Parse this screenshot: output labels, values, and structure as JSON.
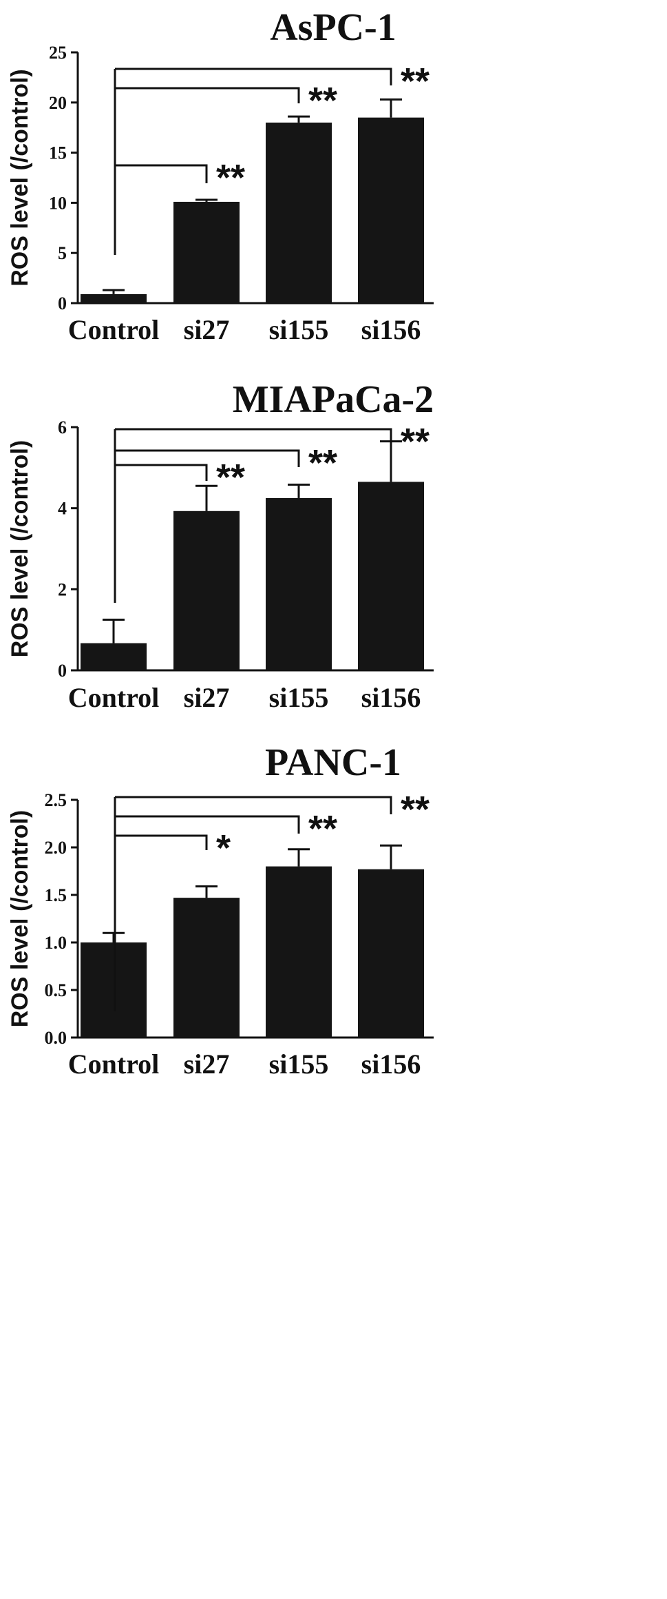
{
  "chart_data": [
    {
      "type": "bar",
      "title": "AsPC-1",
      "xlabel": "",
      "ylabel": "ROS level (/control)",
      "categories": [
        "Control",
        "si27",
        "si155",
        "si156"
      ],
      "values": [
        0.9,
        10.1,
        18.0,
        18.5
      ],
      "errors": [
        0.4,
        0.2,
        0.6,
        1.8
      ],
      "ylim": [
        0,
        25
      ],
      "yticks": [
        "0",
        "5",
        "10",
        "15",
        "20",
        "25"
      ],
      "yticks_values": [
        0,
        5,
        10,
        15,
        20,
        25
      ],
      "bar_color": "#151515",
      "comparisons": [
        {
          "from": "Control",
          "to": "si27",
          "label": "**"
        },
        {
          "from": "Control",
          "to": "si155",
          "label": "**"
        },
        {
          "from": "Control",
          "to": "si156",
          "label": "**"
        }
      ]
    },
    {
      "type": "bar",
      "title": "MIAPaCa-2",
      "xlabel": "",
      "ylabel": "ROS level (/control)",
      "categories": [
        "Control",
        "si27",
        "si155",
        "si156"
      ],
      "values": [
        0.67,
        3.93,
        4.25,
        4.65
      ],
      "errors": [
        0.58,
        0.62,
        0.33,
        1.0
      ],
      "ylim": [
        0,
        6
      ],
      "yticks": [
        "0",
        "2",
        "4",
        "6"
      ],
      "yticks_values": [
        0,
        2,
        4,
        6
      ],
      "bar_color": "#151515",
      "comparisons": [
        {
          "from": "Control",
          "to": "si27",
          "label": "**"
        },
        {
          "from": "Control",
          "to": "si155",
          "label": "**"
        },
        {
          "from": "Control",
          "to": "si156",
          "label": "**"
        }
      ]
    },
    {
      "type": "bar",
      "title": "PANC-1",
      "xlabel": "",
      "ylabel": "ROS level (/control)",
      "categories": [
        "Control",
        "si27",
        "si155",
        "si156"
      ],
      "values": [
        1.0,
        1.47,
        1.8,
        1.77
      ],
      "errors": [
        0.1,
        0.12,
        0.18,
        0.25
      ],
      "ylim": [
        0,
        2.5
      ],
      "yticks": [
        "0.0",
        "0.5",
        "1.0",
        "1.5",
        "2.0",
        "2.5"
      ],
      "yticks_values": [
        0,
        0.5,
        1.0,
        1.5,
        2.0,
        2.5
      ],
      "bar_color": "#151515",
      "comparisons": [
        {
          "from": "Control",
          "to": "si27",
          "label": "*"
        },
        {
          "from": "Control",
          "to": "si155",
          "label": "**"
        },
        {
          "from": "Control",
          "to": "si156",
          "label": "**"
        }
      ]
    }
  ]
}
